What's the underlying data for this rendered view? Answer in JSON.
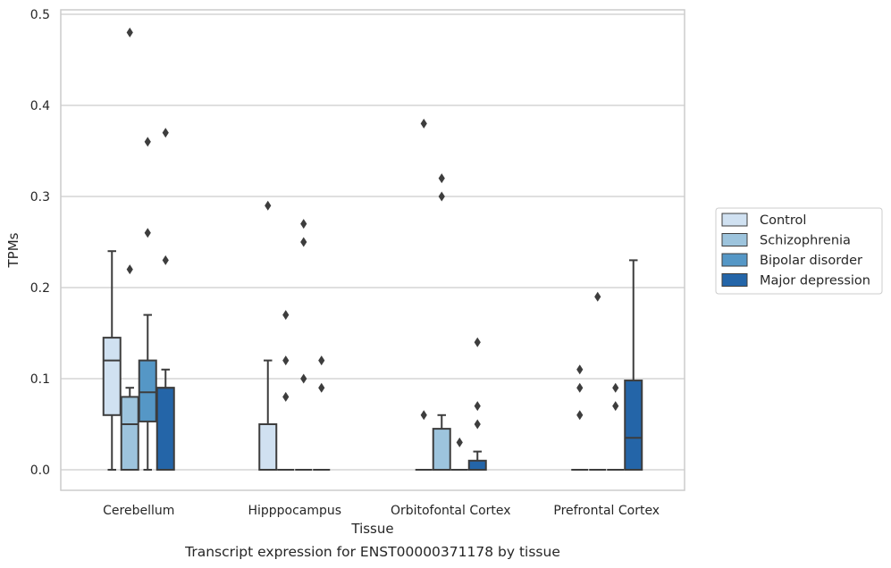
{
  "chart_data": {
    "type": "box",
    "title": "",
    "caption": "Transcript expression for ENST00000371178 by tissue",
    "xlabel": "Tissue",
    "ylabel": "TPMs",
    "ylim": [
      -0.023,
      0.505
    ],
    "yticks": [
      0.0,
      0.1,
      0.2,
      0.3,
      0.4,
      0.5
    ],
    "ytick_labels": [
      "0.0",
      "0.1",
      "0.2",
      "0.3",
      "0.4",
      "0.5"
    ],
    "grid": "horizontal",
    "legend_position": "right",
    "categories": [
      "Cerebellum",
      "Hipppocampus",
      "Orbitofontal Cortex",
      "Prefrontal Cortex"
    ],
    "series": [
      {
        "name": "Control",
        "color": "#d0e1f1",
        "boxes": [
          {
            "q1": 0.06,
            "median": 0.12,
            "q3": 0.145,
            "whisker_low": 0.0,
            "whisker_high": 0.24,
            "outliers": []
          },
          {
            "q1": 0.0,
            "median": 0.0,
            "q3": 0.05,
            "whisker_low": 0.0,
            "whisker_high": 0.12,
            "outliers": [
              0.29
            ]
          },
          {
            "q1": 0.0,
            "median": 0.0,
            "q3": 0.0,
            "whisker_low": 0.0,
            "whisker_high": 0.0,
            "outliers": [
              0.06,
              0.38
            ]
          },
          {
            "q1": 0.0,
            "median": 0.0,
            "q3": 0.0,
            "whisker_low": 0.0,
            "whisker_high": 0.0,
            "outliers": [
              0.06,
              0.09,
              0.11
            ]
          }
        ]
      },
      {
        "name": "Schizophrenia",
        "color": "#9dc4dd",
        "boxes": [
          {
            "q1": 0.0,
            "median": 0.05,
            "q3": 0.08,
            "whisker_low": 0.0,
            "whisker_high": 0.09,
            "outliers": [
              0.22,
              0.48
            ]
          },
          {
            "q1": 0.0,
            "median": 0.0,
            "q3": 0.0,
            "whisker_low": 0.0,
            "whisker_high": 0.0,
            "outliers": [
              0.08,
              0.12,
              0.17
            ]
          },
          {
            "q1": 0.0,
            "median": 0.0,
            "q3": 0.045,
            "whisker_low": 0.0,
            "whisker_high": 0.06,
            "outliers": [
              0.3,
              0.32
            ]
          },
          {
            "q1": 0.0,
            "median": 0.0,
            "q3": 0.0,
            "whisker_low": 0.0,
            "whisker_high": 0.0,
            "outliers": [
              0.19
            ]
          }
        ]
      },
      {
        "name": "Bipolar disorder",
        "color": "#5597c6",
        "boxes": [
          {
            "q1": 0.053,
            "median": 0.085,
            "q3": 0.12,
            "whisker_low": 0.0,
            "whisker_high": 0.17,
            "outliers": [
              0.26,
              0.36
            ]
          },
          {
            "q1": 0.0,
            "median": 0.0,
            "q3": 0.0,
            "whisker_low": 0.0,
            "whisker_high": 0.0,
            "outliers": [
              0.1,
              0.25,
              0.27
            ]
          },
          {
            "q1": 0.0,
            "median": 0.0,
            "q3": 0.0,
            "whisker_low": 0.0,
            "whisker_high": 0.0,
            "outliers": [
              0.03
            ]
          },
          {
            "q1": 0.0,
            "median": 0.0,
            "q3": 0.0,
            "whisker_low": 0.0,
            "whisker_high": 0.0,
            "outliers": [
              0.07,
              0.09
            ]
          }
        ]
      },
      {
        "name": "Major depression",
        "color": "#2465a8",
        "boxes": [
          {
            "q1": 0.0,
            "median": 0.09,
            "q3": 0.09,
            "whisker_low": 0.0,
            "whisker_high": 0.11,
            "outliers": [
              0.23,
              0.37
            ]
          },
          {
            "q1": 0.0,
            "median": 0.0,
            "q3": 0.0,
            "whisker_low": 0.0,
            "whisker_high": 0.0,
            "outliers": [
              0.09,
              0.12
            ]
          },
          {
            "q1": 0.0,
            "median": 0.0,
            "q3": 0.01,
            "whisker_low": 0.0,
            "whisker_high": 0.02,
            "outliers": [
              0.05,
              0.07,
              0.14
            ]
          },
          {
            "q1": 0.0,
            "median": 0.035,
            "q3": 0.098,
            "whisker_low": 0.0,
            "whisker_high": 0.23,
            "outliers": []
          }
        ]
      }
    ]
  }
}
